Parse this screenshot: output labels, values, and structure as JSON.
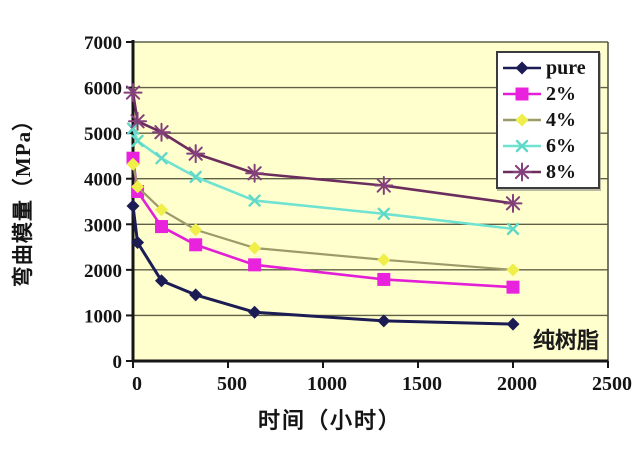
{
  "chart_data": {
    "type": "line",
    "title": "",
    "xlabel": "时间（小时）",
    "ylabel": "弯曲模量（MPa）",
    "annotation_pure_resin": "纯树脂",
    "xlim": [
      0,
      2500
    ],
    "ylim": [
      0,
      7000
    ],
    "x_ticks": [
      0,
      500,
      1000,
      1500,
      2000,
      2500
    ],
    "y_ticks": [
      0,
      1000,
      2000,
      3000,
      4000,
      5000,
      6000,
      7000
    ],
    "grid": "horizontal",
    "legend_position": "top-right-inside",
    "plot_bg_color": "#ffffce",
    "grid_color": "#5f5f46",
    "axis_color": "#161616",
    "x": [
      0,
      24,
      150,
      330,
      640,
      1320,
      2000
    ],
    "series": [
      {
        "name": "pure",
        "marker": "diamond",
        "line_color": "#1c1c55",
        "marker_color": "#1c1c55",
        "values": [
          3400,
          2600,
          1760,
          1450,
          1070,
          880,
          810
        ]
      },
      {
        "name": "2%",
        "marker": "square",
        "line_color": "#e21fd7",
        "marker_color": "#e822dd",
        "values": [
          4450,
          3720,
          2950,
          2550,
          2110,
          1790,
          1620
        ]
      },
      {
        "name": "4%",
        "marker": "diamond",
        "line_color": "#9b9a68",
        "marker_color": "#f0ef4a",
        "values": [
          4320,
          3820,
          3320,
          2880,
          2480,
          2220,
          2000
        ]
      },
      {
        "name": "6%",
        "marker": "x",
        "line_color": "#6fe2d2",
        "marker_color": "#5fd8c8",
        "values": [
          5100,
          4830,
          4450,
          4040,
          3520,
          3230,
          2900
        ]
      },
      {
        "name": "8%",
        "marker": "asterisk",
        "line_color": "#6b2c5e",
        "marker_color": "#84407a",
        "values": [
          5890,
          5260,
          5020,
          4550,
          4120,
          3850,
          3460
        ]
      }
    ]
  }
}
